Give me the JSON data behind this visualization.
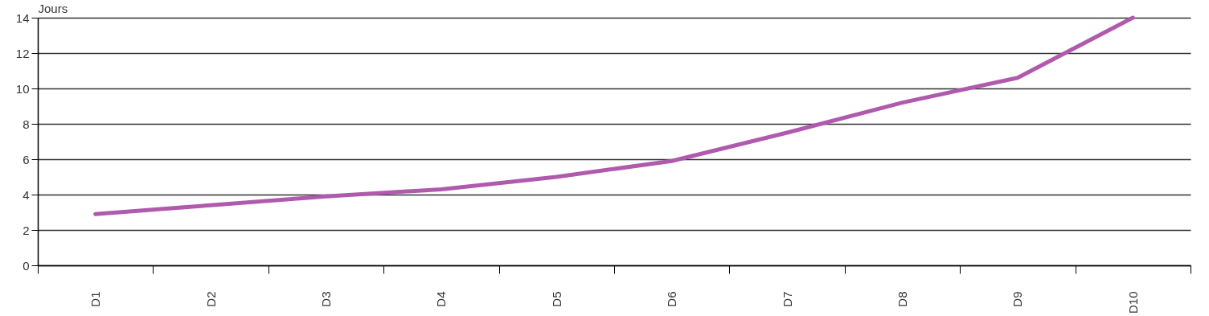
{
  "chart_data": {
    "type": "line",
    "ylabel": "Jours",
    "categories": [
      "D1",
      "D2",
      "D3",
      "D4",
      "D5",
      "D6",
      "D7",
      "D8",
      "D9",
      "D10"
    ],
    "values": [
      2.9,
      3.4,
      3.9,
      4.3,
      5.0,
      5.9,
      7.5,
      9.2,
      10.6,
      14.0
    ],
    "color": "#b05aae",
    "ylim": [
      0,
      14
    ],
    "yticks": [
      0,
      2,
      4,
      6,
      8,
      10,
      12,
      14
    ],
    "grid": "y",
    "legend": false,
    "marker": "none",
    "line_style": "solid"
  }
}
